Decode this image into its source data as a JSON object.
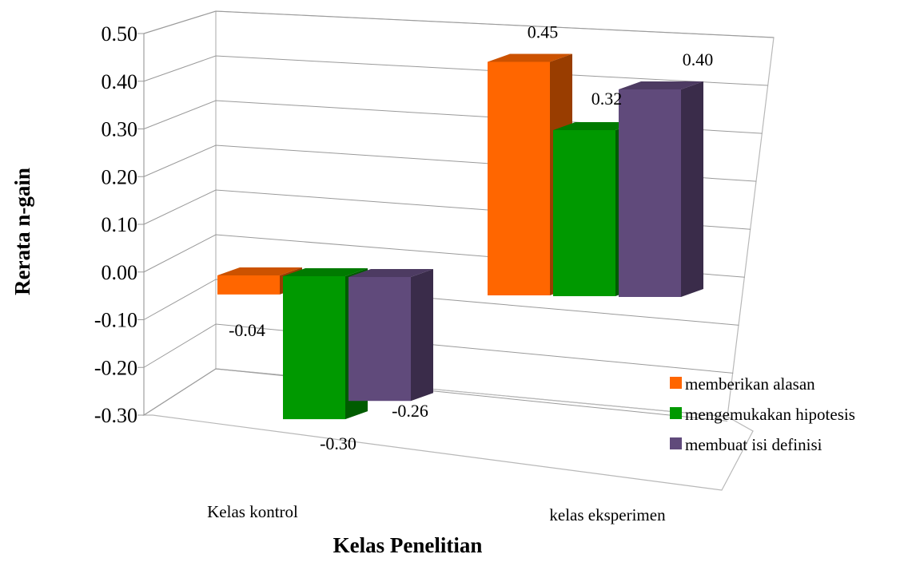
{
  "chart_data": {
    "type": "bar",
    "style": "3d-clustered-column",
    "title": "",
    "xlabel": "Kelas Penelitian",
    "ylabel": "Rerata n-gain",
    "ylim": [
      -0.3,
      0.5
    ],
    "yticks": [
      "0.50",
      "0.40",
      "0.30",
      "0.20",
      "0.10",
      "0.00",
      "-0.10",
      "-0.20",
      "-0.30"
    ],
    "grid": true,
    "legend_position": "right",
    "categories": [
      "Kelas kontrol",
      "kelas eksperimen"
    ],
    "series": [
      {
        "name": "memberikan alasan",
        "color": "#ff6600",
        "values": [
          -0.04,
          0.45
        ],
        "labels": [
          "-0.04",
          "0.45"
        ]
      },
      {
        "name": "mengemukakan hipotesis",
        "color": "#009900",
        "values": [
          -0.3,
          0.32
        ],
        "labels": [
          "-0.30",
          "0.32"
        ]
      },
      {
        "name": "membuat isi definisi",
        "color": "#604a7b",
        "values": [
          -0.26,
          0.4
        ],
        "labels": [
          "-0.26",
          "0.40"
        ]
      }
    ]
  }
}
